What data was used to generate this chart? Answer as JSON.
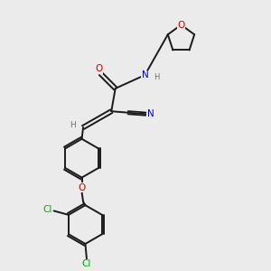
{
  "background_color": "#ebebeb",
  "bond_color": "#1a1a1a",
  "atom_colors": {
    "O": "#cc0000",
    "N": "#0000cc",
    "Cl": "#00aa00",
    "C": "#1a1a1a",
    "H": "#707070"
  },
  "lw": 1.4,
  "fs": 7.5
}
